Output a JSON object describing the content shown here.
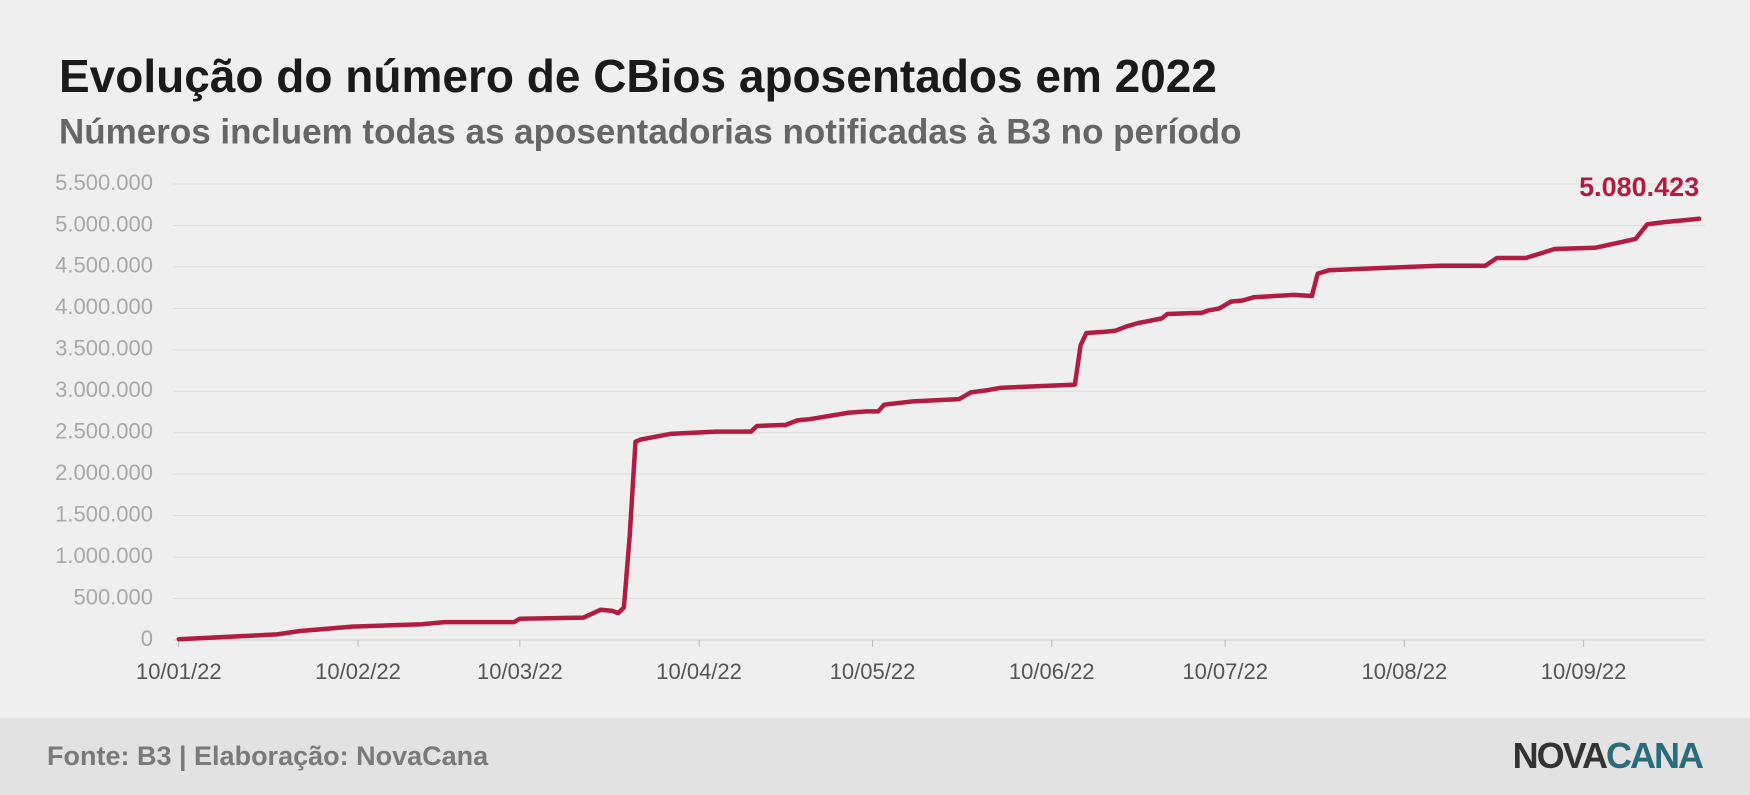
{
  "chart_data": {
    "type": "line",
    "title": "Evolução do número de CBios aposentados em 2022",
    "subtitle": "Números incluem todas as aposentadorias notificadas à B3 no período",
    "x": [
      "10/01/22",
      "27/01/22",
      "31/01/22",
      "09/02/22",
      "21/02/22",
      "25/02/22",
      "09/03/22",
      "10/03/22",
      "21/03/22",
      "24/03/22",
      "26/03/22",
      "27/03/22",
      "28/03/22",
      "29/03/22",
      "30/03/22",
      "31/03/22",
      "05/04/22",
      "13/04/22",
      "19/04/22",
      "20/04/22",
      "25/04/22",
      "27/04/22",
      "29/04/22",
      "06/05/22",
      "09/05/22",
      "11/05/22",
      "12/05/22",
      "17/05/22",
      "25/05/22",
      "27/05/22",
      "30/05/22",
      "01/06/22",
      "10/06/22",
      "14/06/22",
      "15/06/22",
      "16/06/22",
      "19/06/22",
      "21/06/22",
      "23/06/22",
      "25/06/22",
      "29/06/22",
      "30/06/22",
      "06/07/22",
      "07/07/22",
      "09/07/22",
      "11/07/22",
      "13/07/22",
      "15/07/22",
      "22/07/22",
      "25/07/22",
      "26/07/22",
      "28/07/22",
      "06/08/22",
      "16/08/22",
      "24/08/22",
      "26/08/22",
      "31/08/22",
      "05/09/22",
      "12/09/22",
      "19/09/22",
      "21/09/22",
      "24/09/22",
      "30/09/22"
    ],
    "series": [
      {
        "name": "CBios aposentados",
        "color": "#b01c42",
        "values": [
          10000,
          68000,
          108000,
          162000,
          189000,
          216000,
          216000,
          257000,
          270000,
          365000,
          351000,
          324000,
          392000,
          1257000,
          2392000,
          2419000,
          2486000,
          2514000,
          2514000,
          2581000,
          2595000,
          2649000,
          2662000,
          2743000,
          2757000,
          2757000,
          2838000,
          2878000,
          2905000,
          2986000,
          3014000,
          3041000,
          3068000,
          3081000,
          3554000,
          3703000,
          3716000,
          3730000,
          3784000,
          3824000,
          3878000,
          3932000,
          3946000,
          3973000,
          4000000,
          4081000,
          4095000,
          4135000,
          4162000,
          4149000,
          4419000,
          4460000,
          4487000,
          4514000,
          4514000,
          4608000,
          4608000,
          4716000,
          4730000,
          4838000,
          5014000,
          5041000,
          5080423
        ],
        "last_value_label": "5.080.423"
      }
    ],
    "xlim": [
      "09/01/22",
      "01/10/22"
    ],
    "xticks": [
      "10/01/22",
      "10/02/22",
      "10/03/22",
      "10/04/22",
      "10/05/22",
      "10/06/22",
      "10/07/22",
      "10/08/22",
      "10/09/22"
    ],
    "ylim": [
      0,
      5500000
    ],
    "yticks": [
      0,
      {
        "value": 500000,
        "label": "500.000"
      },
      {
        "value": 1000000,
        "label": "1.000.000"
      },
      {
        "value": 1500000,
        "label": "1.500.000"
      },
      {
        "value": 2000000,
        "label": "2.000.000"
      },
      {
        "value": 2500000,
        "label": "2.500.000"
      },
      {
        "value": 3000000,
        "label": "3.000.000"
      },
      {
        "value": 3500000,
        "label": "3.500.000"
      },
      {
        "value": 4000000,
        "label": "4.000.000"
      },
      {
        "value": 4500000,
        "label": "4.500.000"
      },
      {
        "value": 5000000,
        "label": "5.000.000"
      },
      {
        "value": 5500000,
        "label": "5.500.000"
      }
    ],
    "grid": true
  },
  "footer": {
    "source": "Fonte: B3 | Elaboração: NovaCana",
    "logo": [
      "NOVA",
      "CANA"
    ]
  }
}
